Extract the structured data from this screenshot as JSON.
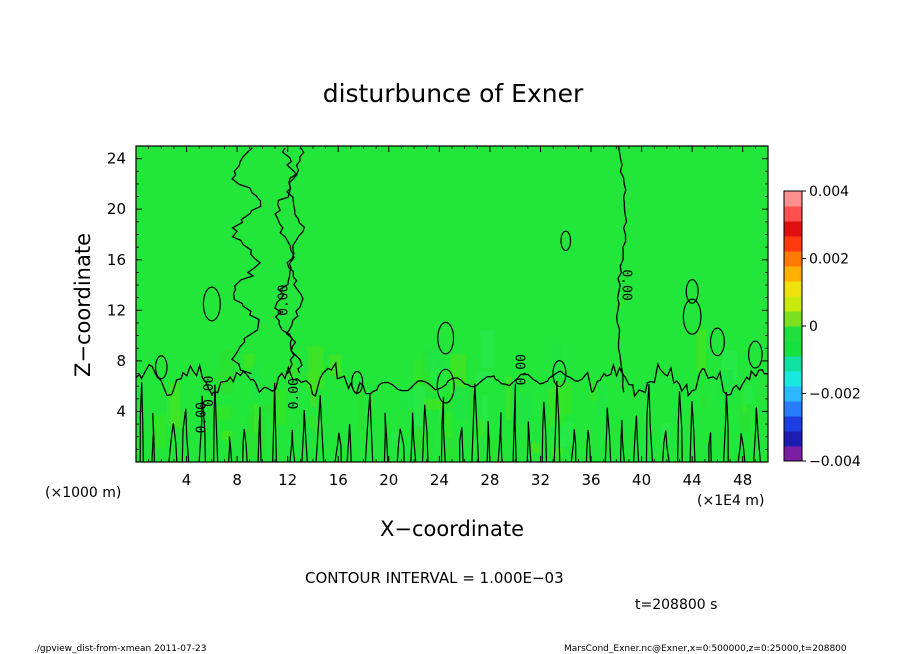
{
  "chart_data": {
    "type": "heatmap",
    "title": "disturbunce of Exner",
    "xlabel": "X−coordinate",
    "ylabel": "Z−coordinate",
    "x_unit_left": "(×1000 m)",
    "x_unit_right": "(×1E4 m)",
    "xlim": [
      0,
      50
    ],
    "ylim": [
      0,
      25
    ],
    "x_ticks": [
      4,
      8,
      12,
      16,
      20,
      24,
      28,
      32,
      36,
      40,
      44,
      48
    ],
    "y_ticks": [
      4,
      8,
      12,
      16,
      20,
      24
    ],
    "x_tick_labels": [
      "4",
      "8",
      "12",
      "16",
      "20",
      "24",
      "28",
      "32",
      "36",
      "40",
      "44",
      "48"
    ],
    "y_tick_labels": [
      "4",
      "8",
      "12",
      "16",
      "20",
      "24"
    ],
    "colorbar": {
      "min": -0.004,
      "max": 0.004,
      "tick_values": [
        0.004,
        0.002,
        0,
        -0.002,
        -0.004
      ],
      "tick_labels": [
        "0.004",
        "0.002",
        "0",
        "−0.002",
        "−0.004"
      ],
      "colors": [
        "#7a1fa2",
        "#1c1cb0",
        "#1c3ee0",
        "#2a7cff",
        "#2cb8ff",
        "#1ae8e0",
        "#10e0a0",
        "#18e040",
        "#20e040",
        "#7ce020",
        "#c8ea10",
        "#f0e010",
        "#ffb000",
        "#ff7a00",
        "#ff3a10",
        "#e01010",
        "#ff5050",
        "#ff9090"
      ]
    },
    "field_summary": {
      "background_value": 0.0,
      "near_surface_band_top": 8,
      "contour_levels_labeled": [
        "0.00"
      ]
    },
    "contour_labels": [
      {
        "text": "0.00",
        "x": 12,
        "z": 12.8,
        "rotate": -90
      },
      {
        "text": "0.00",
        "x": 38.5,
        "z": 14,
        "rotate": 90
      },
      {
        "text": "0.00",
        "x": 30.8,
        "z": 7.3,
        "rotate": -90
      },
      {
        "text": "0.00",
        "x": 12.8,
        "z": 5.4,
        "rotate": -90
      },
      {
        "text": "0.00",
        "x": 5.5,
        "z": 3.5,
        "rotate": -90
      },
      {
        "text": "0.00",
        "x": 6.1,
        "z": 5.6,
        "rotate": -90
      }
    ],
    "contour_interval": "CONTOUR INTERVAL = 1.000E−03",
    "time_label": "t=208800 s"
  },
  "footer": {
    "left": "./gpview_dist-from-xmean  2011-07-23",
    "right": "MarsCond_Exner.nc@Exner,x=0:500000,z=0:25000,t=208800"
  },
  "colors": {
    "field_green": "#22e63a",
    "background": "#ffffff",
    "contour_line": "#000000"
  }
}
